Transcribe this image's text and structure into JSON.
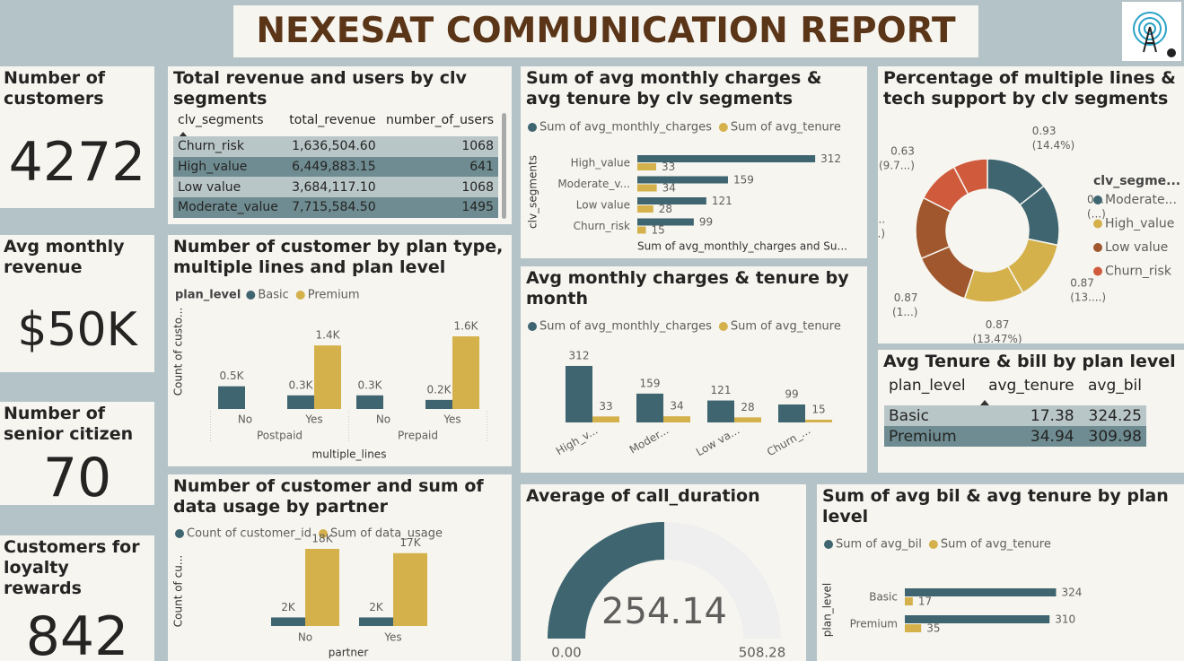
{
  "title": "NEXESAT COMMUNICATION REPORT",
  "cards": [
    {
      "label": "Number of customers",
      "value": 4272
    },
    {
      "label": "Avg monthly revenue",
      "value": "$50K"
    },
    {
      "label": "Number of senior citizen",
      "value": 70
    },
    {
      "label": "Customers for loyalty rewards",
      "value": 842
    }
  ],
  "tables": [
    {
      "title": "Total revenue and users by clv segments",
      "columns": [
        "clv_segments",
        "total_revenue",
        "number_of_users"
      ],
      "rows": [
        [
          "Churn_risk",
          "1,636,504.60",
          1068
        ],
        [
          "High_value",
          "6,449,883.15",
          641
        ],
        [
          "Low value",
          "3,684,117.10",
          1068
        ],
        [
          "Moderate_value",
          "7,715,584.50",
          1495
        ]
      ]
    },
    {
      "title": "Avg Tenure & bill by plan level",
      "columns": [
        "plan_level",
        "avg_tenure",
        "avg_bil"
      ],
      "rows": [
        [
          "Basic",
          17.38,
          324.25
        ],
        [
          "Premium",
          34.94,
          309.98
        ]
      ]
    }
  ],
  "chart_data": [
    {
      "type": "bar",
      "orientation": "horizontal",
      "title": "Sum of avg monthly charges & avg tenure by clv segments",
      "y_label": "clv_segments",
      "x_label": "Sum of avg_monthly_charges and Su...",
      "categories": [
        "High_value",
        "Moderate_v...",
        "Low value",
        "Churn_risk"
      ],
      "series": [
        {
          "name": "Sum of avg_monthly_charges",
          "color": "#3e6570",
          "values": [
            312,
            159,
            121,
            99
          ]
        },
        {
          "name": "Sum of avg_tenure",
          "color": "#d5b14c",
          "values": [
            33,
            34,
            28,
            15
          ]
        }
      ]
    },
    {
      "type": "pie",
      "donut": true,
      "title": "Percentage of multiple lines & tech support by clv segments",
      "legend_title": "clv_segme...",
      "series": [
        {
          "name": "Moderate...",
          "color": "#3e6570",
          "values": [
            0.93,
            0.9
          ],
          "value_labels": [
            "0.93",
            "0..."
          ],
          "percent_labels": [
            "(14.4%)",
            "(...)"
          ]
        },
        {
          "name": "High_value",
          "color": "#d5b14c",
          "values": [
            0.87,
            0.87
          ],
          "value_labels": [
            "0.87",
            "0.87"
          ],
          "percent_labels": [
            "(13....)",
            "(13.47%)"
          ]
        },
        {
          "name": "Low value",
          "color": "#a0572d",
          "values": [
            0.87,
            0.9
          ],
          "value_labels": [
            "0.87",
            "0..."
          ],
          "percent_labels": [
            "(1...)",
            "(...)"
          ]
        },
        {
          "name": "Churn_risk",
          "color": "#d05a3c",
          "values": [
            0.63,
            0.5
          ],
          "value_labels": [
            "0.63",
            null
          ],
          "percent_labels": [
            "(9.7...)",
            null
          ]
        }
      ]
    },
    {
      "type": "bar",
      "title": "Number of customer by plan type, multiple lines and plan level",
      "legend_title": "plan_level",
      "y_label": "Count of custo...",
      "x_label": "multiple_lines",
      "categories": [
        "No",
        "Yes",
        "No",
        "Yes"
      ],
      "groups": [
        "Postpaid",
        "Prepaid"
      ],
      "series": [
        {
          "name": "Basic",
          "color": "#3e6570",
          "values": [
            500,
            300,
            300,
            200
          ],
          "value_labels": [
            "0.5K",
            "0.3K",
            "0.3K",
            "0.2K"
          ]
        },
        {
          "name": "Premium",
          "color": "#d5b14c",
          "values": [
            null,
            1400,
            null,
            1600
          ],
          "value_labels": [
            null,
            "1.4K",
            null,
            "1.6K"
          ]
        }
      ]
    },
    {
      "type": "bar",
      "title": "Avg monthly charges & tenure by month",
      "categories": [
        "High_v...",
        "Moder...",
        "Low va...",
        "Churn_..."
      ],
      "series": [
        {
          "name": "Sum of avg_monthly_charges",
          "color": "#3e6570",
          "values": [
            312,
            159,
            121,
            99
          ]
        },
        {
          "name": "Sum of avg_tenure",
          "color": "#d5b14c",
          "values": [
            33,
            34,
            28,
            15
          ]
        }
      ]
    },
    {
      "type": "bar",
      "title": "Number of customer and sum of data usage by partner",
      "y_label": "Count of cu...",
      "x_label": "partner",
      "categories": [
        "No",
        "Yes"
      ],
      "series": [
        {
          "name": "Count of customer_id",
          "color": "#3e6570",
          "values": [
            2000,
            2000
          ],
          "value_labels": [
            "2K",
            "2K"
          ]
        },
        {
          "name": "Sum of data_usage",
          "color": "#d5b14c",
          "values": [
            18000,
            17000
          ],
          "value_labels": [
            "18K",
            "17K"
          ]
        }
      ]
    },
    {
      "type": "gauge",
      "title": "Average of call_duration",
      "value": 254.14,
      "min": {
        "value": 0,
        "label": "0.00"
      },
      "max": {
        "value": 508.28,
        "label": "508.28"
      },
      "color": "#3e6570"
    },
    {
      "type": "bar",
      "orientation": "horizontal",
      "title": "Sum of avg bil & avg tenure by plan level",
      "y_label": "plan_level",
      "categories": [
        "Basic",
        "Premium"
      ],
      "series": [
        {
          "name": "Sum of avg_bil",
          "color": "#3e6570",
          "values": [
            324,
            310
          ]
        },
        {
          "name": "Sum of avg_tenure",
          "color": "#d5b14c",
          "values": [
            17,
            35
          ]
        }
      ]
    }
  ]
}
